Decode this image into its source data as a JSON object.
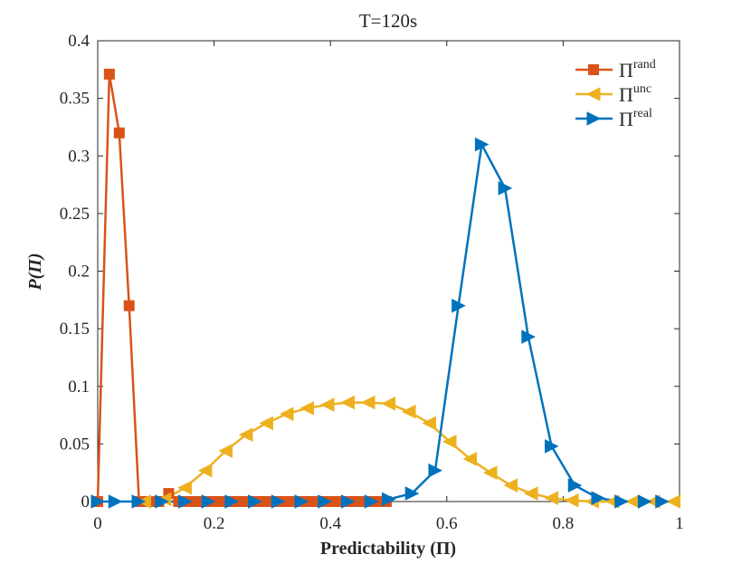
{
  "chart_data": {
    "type": "line",
    "title": "T=120s",
    "xlabel": "Predictability (Π)",
    "ylabel": "P(Π)",
    "xlim": [
      0,
      1
    ],
    "ylim": [
      0,
      0.4
    ],
    "xticks": [
      0,
      0.2,
      0.4,
      0.6,
      0.8,
      1
    ],
    "xtick_labels": [
      "0",
      "0.2",
      "0.4",
      "0.6",
      "0.8",
      "1"
    ],
    "yticks": [
      0,
      0.05,
      0.1,
      0.15,
      0.2,
      0.25,
      0.3,
      0.35,
      0.4
    ],
    "ytick_labels": [
      "0",
      "0.05",
      "0.1",
      "0.15",
      "0.2",
      "0.25",
      "0.3",
      "0.35",
      "0.4"
    ],
    "grid": false,
    "legend_position": "top-right",
    "series": [
      {
        "name": "Π",
        "superscript": "rand",
        "color": "#D95319",
        "marker": "square",
        "x": [
          0,
          0.02,
          0.037,
          0.054,
          0.071,
          0.088,
          0.105,
          0.122,
          0.139,
          0.156,
          0.173,
          0.19,
          0.207,
          0.224,
          0.241,
          0.258,
          0.275,
          0.292,
          0.309,
          0.326,
          0.343,
          0.36,
          0.377,
          0.394,
          0.411,
          0.428,
          0.445,
          0.462,
          0.479,
          0.496
        ],
        "y": [
          0,
          0.371,
          0.32,
          0.17,
          0,
          0,
          0,
          0.007,
          0,
          0,
          0,
          0,
          0,
          0,
          0,
          0,
          0,
          0,
          0,
          0,
          0,
          0,
          0,
          0,
          0,
          0,
          0,
          0,
          0,
          0
        ]
      },
      {
        "name": "Π",
        "superscript": "unc",
        "color": "#EDB120",
        "marker": "triangle-left",
        "x": [
          0.08,
          0.115,
          0.15,
          0.185,
          0.22,
          0.255,
          0.29,
          0.325,
          0.36,
          0.395,
          0.43,
          0.465,
          0.5,
          0.535,
          0.57,
          0.605,
          0.64,
          0.675,
          0.71,
          0.745,
          0.78,
          0.815,
          0.85,
          0.885,
          0.92,
          0.955,
          0.99
        ],
        "y": [
          0,
          0.002,
          0.012,
          0.027,
          0.044,
          0.058,
          0.068,
          0.076,
          0.081,
          0.084,
          0.086,
          0.086,
          0.085,
          0.078,
          0.068,
          0.052,
          0.037,
          0.025,
          0.014,
          0.007,
          0.003,
          0.001,
          0,
          0,
          0,
          0,
          0
        ]
      },
      {
        "name": "Π",
        "superscript": "real",
        "color": "#0072BD",
        "marker": "triangle-right",
        "x": [
          0.0,
          0.03,
          0.07,
          0.11,
          0.15,
          0.19,
          0.23,
          0.27,
          0.31,
          0.35,
          0.39,
          0.43,
          0.47,
          0.5,
          0.54,
          0.58,
          0.62,
          0.66,
          0.7,
          0.74,
          0.78,
          0.82,
          0.86,
          0.9,
          0.94,
          0.97
        ],
        "y": [
          0,
          0,
          0,
          0,
          0,
          0,
          0,
          0,
          0,
          0,
          0,
          0,
          0,
          0.002,
          0.007,
          0.027,
          0.17,
          0.31,
          0.272,
          0.143,
          0.048,
          0.014,
          0.003,
          0,
          0,
          0
        ]
      }
    ]
  }
}
